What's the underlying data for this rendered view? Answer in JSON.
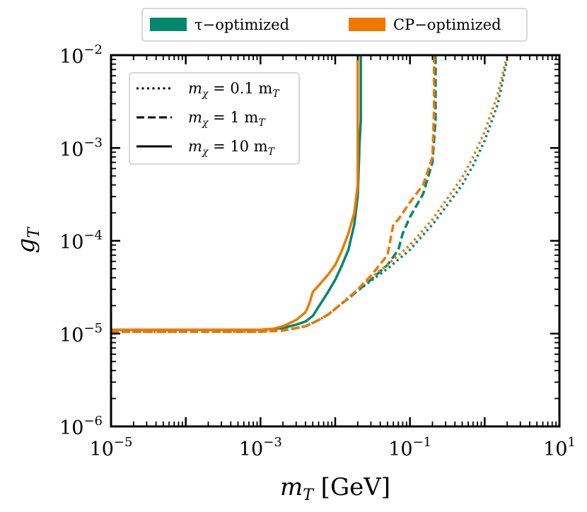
{
  "chart_data": {
    "type": "line",
    "xscale": "log",
    "yscale": "log",
    "xlim": [
      1e-05,
      10
    ],
    "ylim": [
      1e-06,
      0.01
    ],
    "xlabel": "m_T [GeV]",
    "ylabel": "g_T",
    "xticks": [
      {
        "value": 1e-05,
        "base": "10",
        "exp": "−5"
      },
      {
        "value": 0.001,
        "base": "10",
        "exp": "−3"
      },
      {
        "value": 0.1,
        "base": "10",
        "exp": "−1"
      },
      {
        "value": 10,
        "base": "10",
        "exp": "1"
      }
    ],
    "yticks": [
      {
        "value": 1e-06,
        "base": "10",
        "exp": "−6"
      },
      {
        "value": 1e-05,
        "base": "10",
        "exp": "−5"
      },
      {
        "value": 0.0001,
        "base": "10",
        "exp": "−4"
      },
      {
        "value": 0.001,
        "base": "10",
        "exp": "−3"
      },
      {
        "value": 0.01,
        "base": "10",
        "exp": "−2"
      }
    ],
    "colors": {
      "tau": "#00876c",
      "cp": "#f07800"
    },
    "legend_colors": [
      {
        "label": "τ−optimized",
        "color": "#00876c"
      },
      {
        "label": "CP−optimized",
        "color": "#f07800"
      }
    ],
    "legend_styles": [
      {
        "label_main": "m",
        "label_sub": "χ",
        "label_rest": " = 0.1 m",
        "label_sub2": "T",
        "style": "dotted"
      },
      {
        "label_main": "m",
        "label_sub": "χ",
        "label_rest": " = 1 m",
        "label_sub2": "T",
        "style": "dashed"
      },
      {
        "label_main": "m",
        "label_sub": "χ",
        "label_rest": " = 10 m",
        "label_sub2": "T",
        "style": "solid"
      }
    ],
    "series": [
      {
        "name": "τ−optimized, m_χ = 10 m_T",
        "color": "#00876c",
        "style": "solid",
        "x": [
          1e-05,
          0.0001,
          0.001,
          0.0015,
          0.002,
          0.003,
          0.004,
          0.005,
          0.006,
          0.008,
          0.01,
          0.012,
          0.015,
          0.018,
          0.02,
          0.021,
          0.021,
          0.022,
          0.022
        ],
        "y": [
          1.1e-05,
          1.1e-05,
          1.1e-05,
          1.12e-05,
          1.15e-05,
          1.25e-05,
          1.35e-05,
          1.55e-05,
          1.95e-05,
          2.8e-05,
          3.8e-05,
          5.2e-05,
          8e-05,
          0.00015,
          0.0003,
          0.0009,
          0.001,
          0.002,
          0.01
        ]
      },
      {
        "name": "CP−optimized, m_χ = 10 m_T",
        "color": "#f07800",
        "style": "solid",
        "x": [
          1e-05,
          0.0001,
          0.001,
          0.0015,
          0.002,
          0.003,
          0.004,
          0.0045,
          0.005,
          0.006,
          0.008,
          0.01,
          0.012,
          0.015,
          0.018,
          0.02,
          0.02,
          0.02
        ],
        "y": [
          1.1e-05,
          1.1e-05,
          1.1e-05,
          1.13e-05,
          1.2e-05,
          1.4e-05,
          1.7e-05,
          2.1e-05,
          2.8e-05,
          3.3e-05,
          4.3e-05,
          5.5e-05,
          7.5e-05,
          0.00012,
          0.0002,
          0.0004,
          0.001,
          0.01
        ]
      },
      {
        "name": "τ−optimized, m_χ = 1 m_T",
        "color": "#00876c",
        "style": "dashed",
        "x": [
          1e-05,
          0.0001,
          0.001,
          0.002,
          0.004,
          0.006,
          0.008,
          0.01,
          0.015,
          0.02,
          0.03,
          0.05,
          0.07,
          0.08,
          0.1,
          0.15,
          0.2,
          0.22,
          0.22
        ],
        "y": [
          1.05e-05,
          1.05e-05,
          1.05e-05,
          1.08e-05,
          1.2e-05,
          1.4e-05,
          1.6e-05,
          1.85e-05,
          2.4e-05,
          2.9e-05,
          3.8e-05,
          5.5e-05,
          8e-05,
          0.00012,
          0.00018,
          0.00032,
          0.0007,
          0.002,
          0.01
        ]
      },
      {
        "name": "CP−optimized, m_χ = 1 m_T",
        "color": "#f07800",
        "style": "dashed",
        "x": [
          1e-05,
          0.0001,
          0.001,
          0.002,
          0.004,
          0.006,
          0.008,
          0.01,
          0.015,
          0.02,
          0.03,
          0.05,
          0.06,
          0.07,
          0.1,
          0.15,
          0.2,
          0.21,
          0.21
        ],
        "y": [
          1.05e-05,
          1.05e-05,
          1.05e-05,
          1.08e-05,
          1.2e-05,
          1.4e-05,
          1.6e-05,
          1.85e-05,
          2.4e-05,
          3e-05,
          4.2e-05,
          7e-05,
          0.00015,
          0.00017,
          0.00026,
          0.0004,
          0.0008,
          0.0025,
          0.01
        ]
      },
      {
        "name": "τ−optimized, m_χ = 0.1 m_T",
        "color": "#00876c",
        "style": "dotted",
        "x": [
          1e-05,
          0.0001,
          0.001,
          0.002,
          0.004,
          0.006,
          0.008,
          0.01,
          0.015,
          0.02,
          0.03,
          0.05,
          0.1,
          0.2,
          0.3,
          0.5,
          0.7,
          1.0,
          1.5,
          2.0
        ],
        "y": [
          1.05e-05,
          1.05e-05,
          1.05e-05,
          1.08e-05,
          1.2e-05,
          1.4e-05,
          1.6e-05,
          1.85e-05,
          2.4e-05,
          2.9e-05,
          3.7e-05,
          5e-05,
          8e-05,
          0.00015,
          0.00023,
          0.0004,
          0.00065,
          0.0012,
          0.003,
          0.009
        ]
      },
      {
        "name": "CP−optimized, m_χ = 0.1 m_T",
        "color": "#f07800",
        "style": "dotted",
        "x": [
          1e-05,
          0.0001,
          0.001,
          0.002,
          0.004,
          0.006,
          0.008,
          0.01,
          0.015,
          0.02,
          0.03,
          0.05,
          0.1,
          0.2,
          0.3,
          0.5,
          0.7,
          1.0,
          1.5,
          2.0
        ],
        "y": [
          1.05e-05,
          1.05e-05,
          1.05e-05,
          1.08e-05,
          1.2e-05,
          1.4e-05,
          1.6e-05,
          1.85e-05,
          2.45e-05,
          3e-05,
          4e-05,
          5.5e-05,
          9e-05,
          0.00017,
          0.00027,
          0.00048,
          0.0008,
          0.0015,
          0.0038,
          0.01
        ]
      }
    ]
  }
}
